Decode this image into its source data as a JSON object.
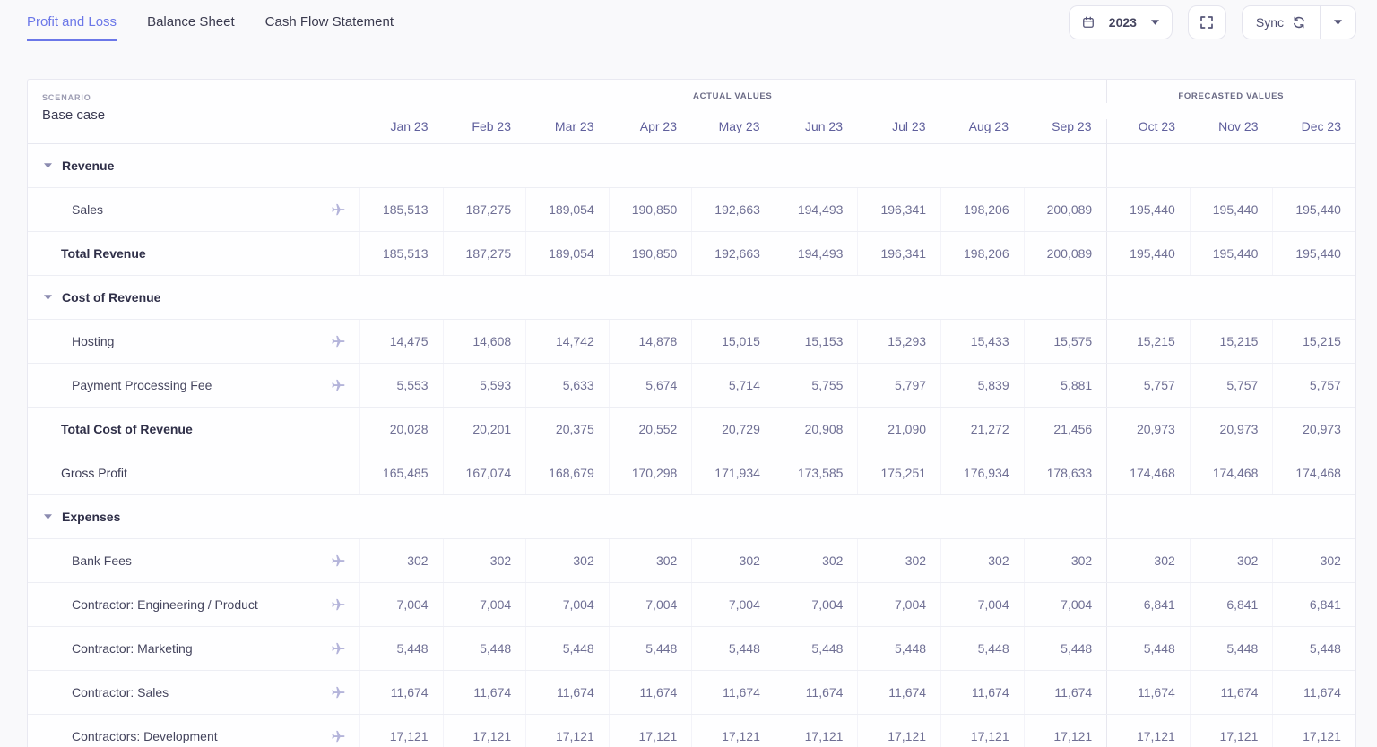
{
  "tabs": [
    {
      "label": "Profit and Loss",
      "active": true
    },
    {
      "label": "Balance Sheet",
      "active": false
    },
    {
      "label": "Cash Flow Statement",
      "active": false
    }
  ],
  "controls": {
    "year": "2023",
    "sync_label": "Sync"
  },
  "colors": {
    "accent": "#6B77E8",
    "icon": "#565678",
    "plane_icon": "#B4B4DA",
    "number_text": "#6F6F94",
    "month_text": "#5F5F9C"
  },
  "table": {
    "scenario_label": "SCENARIO",
    "scenario_value": "Base case",
    "group_actual": "ACTUAL VALUES",
    "group_forecast": "FORECASTED VALUES",
    "months_actual": [
      "Jan 23",
      "Feb 23",
      "Mar 23",
      "Apr 23",
      "May 23",
      "Jun 23",
      "Jul 23",
      "Aug 23",
      "Sep 23"
    ],
    "months_forecast": [
      "Oct 23",
      "Nov 23",
      "Dec 23"
    ],
    "rows": [
      {
        "type": "section",
        "label": "Revenue"
      },
      {
        "type": "item",
        "label": "Sales",
        "values": [
          "185,513",
          "187,275",
          "189,054",
          "190,850",
          "192,663",
          "194,493",
          "196,341",
          "198,206",
          "200,089",
          "195,440",
          "195,440",
          "195,440"
        ]
      },
      {
        "type": "total",
        "label": "Total Revenue",
        "values": [
          "185,513",
          "187,275",
          "189,054",
          "190,850",
          "192,663",
          "194,493",
          "196,341",
          "198,206",
          "200,089",
          "195,440",
          "195,440",
          "195,440"
        ]
      },
      {
        "type": "section",
        "label": "Cost of Revenue"
      },
      {
        "type": "item",
        "label": "Hosting",
        "values": [
          "14,475",
          "14,608",
          "14,742",
          "14,878",
          "15,015",
          "15,153",
          "15,293",
          "15,433",
          "15,575",
          "15,215",
          "15,215",
          "15,215"
        ]
      },
      {
        "type": "item",
        "label": "Payment Processing Fee",
        "values": [
          "5,553",
          "5,593",
          "5,633",
          "5,674",
          "5,714",
          "5,755",
          "5,797",
          "5,839",
          "5,881",
          "5,757",
          "5,757",
          "5,757"
        ]
      },
      {
        "type": "total",
        "label": "Total Cost of Revenue",
        "values": [
          "20,028",
          "20,201",
          "20,375",
          "20,552",
          "20,729",
          "20,908",
          "21,090",
          "21,272",
          "21,456",
          "20,973",
          "20,973",
          "20,973"
        ]
      },
      {
        "type": "plain",
        "label": "Gross Profit",
        "values": [
          "165,485",
          "167,074",
          "168,679",
          "170,298",
          "171,934",
          "173,585",
          "175,251",
          "176,934",
          "178,633",
          "174,468",
          "174,468",
          "174,468"
        ]
      },
      {
        "type": "section",
        "label": "Expenses"
      },
      {
        "type": "item",
        "label": "Bank Fees",
        "values": [
          "302",
          "302",
          "302",
          "302",
          "302",
          "302",
          "302",
          "302",
          "302",
          "302",
          "302",
          "302"
        ]
      },
      {
        "type": "item",
        "label": "Contractor: Engineering / Product",
        "values": [
          "7,004",
          "7,004",
          "7,004",
          "7,004",
          "7,004",
          "7,004",
          "7,004",
          "7,004",
          "7,004",
          "6,841",
          "6,841",
          "6,841"
        ]
      },
      {
        "type": "item",
        "label": "Contractor: Marketing",
        "values": [
          "5,448",
          "5,448",
          "5,448",
          "5,448",
          "5,448",
          "5,448",
          "5,448",
          "5,448",
          "5,448",
          "5,448",
          "5,448",
          "5,448"
        ]
      },
      {
        "type": "item",
        "label": "Contractor: Sales",
        "values": [
          "11,674",
          "11,674",
          "11,674",
          "11,674",
          "11,674",
          "11,674",
          "11,674",
          "11,674",
          "11,674",
          "11,674",
          "11,674",
          "11,674"
        ]
      },
      {
        "type": "item",
        "label": "Contractors: Development",
        "values": [
          "17,121",
          "17,121",
          "17,121",
          "17,121",
          "17,121",
          "17,121",
          "17,121",
          "17,121",
          "17,121",
          "17,121",
          "17,121",
          "17,121"
        ]
      }
    ]
  }
}
